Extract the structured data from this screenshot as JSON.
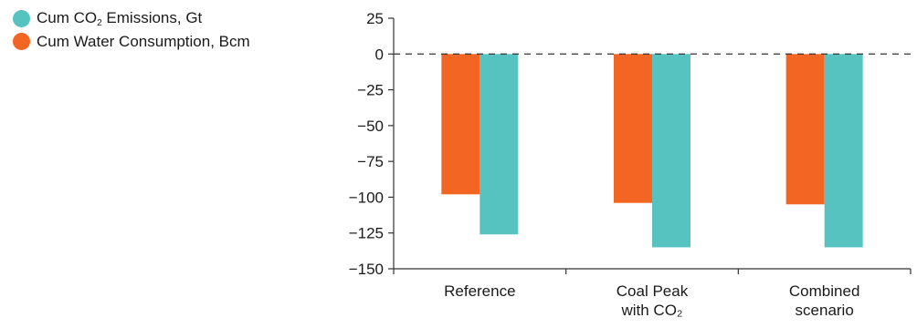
{
  "chart_data": {
    "type": "bar",
    "categories": [
      [
        "Reference"
      ],
      [
        "Coal Peak",
        "with CO₂"
      ],
      [
        "Combined",
        "scenario"
      ]
    ],
    "series": [
      {
        "name_parts": [
          "Cum CO",
          "2",
          " Emissions, Gt"
        ],
        "color": "#56c3c0",
        "values": [
          -126,
          -135,
          -135
        ]
      },
      {
        "name_parts": [
          "Cum Water Consumption, Bcm"
        ],
        "color": "#f26522",
        "values": [
          -98,
          -104,
          -105
        ]
      }
    ],
    "bar_order": [
      1,
      0
    ],
    "yticks": [
      25,
      0,
      -25,
      -50,
      -75,
      -100,
      -125,
      -150
    ],
    "ytick_labels": [
      "25",
      "0",
      "−25",
      "−50",
      "−75",
      "−100",
      "−125",
      "−150"
    ],
    "ylim": [
      -150,
      25
    ],
    "zero_line": "dashed",
    "legend_position": "top-left",
    "grid": false
  }
}
